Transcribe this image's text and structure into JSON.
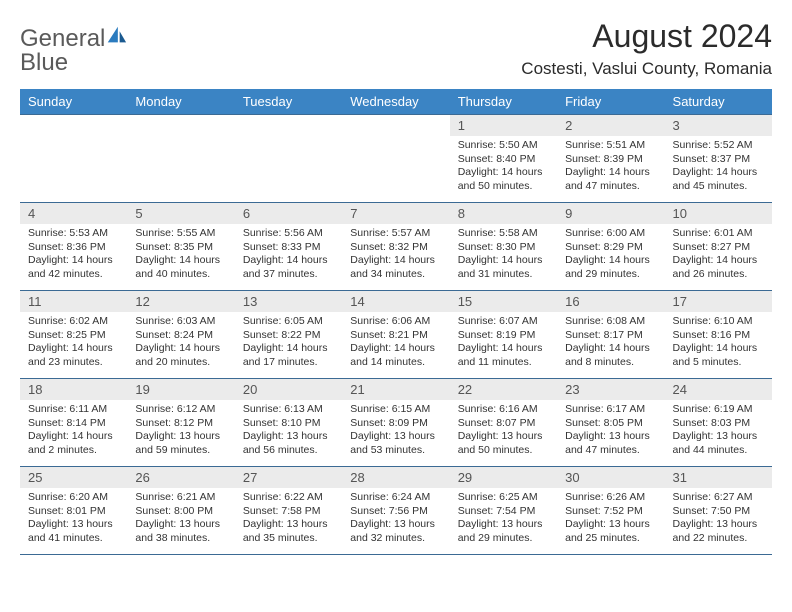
{
  "logo": {
    "text1": "General",
    "text2": "Blue"
  },
  "title": "August 2024",
  "location": "Costesti, Vaslui County, Romania",
  "colors": {
    "header_bg": "#3b84c4",
    "header_text": "#ffffff",
    "daynum_bg": "#ebebeb",
    "border": "#3b6a94",
    "logo_gray": "#5a5a5a",
    "logo_blue": "#2b7bbf"
  },
  "day_headers": [
    "Sunday",
    "Monday",
    "Tuesday",
    "Wednesday",
    "Thursday",
    "Friday",
    "Saturday"
  ],
  "weeks": [
    [
      {
        "n": "",
        "sr": "",
        "ss": "",
        "dl": ""
      },
      {
        "n": "",
        "sr": "",
        "ss": "",
        "dl": ""
      },
      {
        "n": "",
        "sr": "",
        "ss": "",
        "dl": ""
      },
      {
        "n": "",
        "sr": "",
        "ss": "",
        "dl": ""
      },
      {
        "n": "1",
        "sr": "Sunrise: 5:50 AM",
        "ss": "Sunset: 8:40 PM",
        "dl": "Daylight: 14 hours and 50 minutes."
      },
      {
        "n": "2",
        "sr": "Sunrise: 5:51 AM",
        "ss": "Sunset: 8:39 PM",
        "dl": "Daylight: 14 hours and 47 minutes."
      },
      {
        "n": "3",
        "sr": "Sunrise: 5:52 AM",
        "ss": "Sunset: 8:37 PM",
        "dl": "Daylight: 14 hours and 45 minutes."
      }
    ],
    [
      {
        "n": "4",
        "sr": "Sunrise: 5:53 AM",
        "ss": "Sunset: 8:36 PM",
        "dl": "Daylight: 14 hours and 42 minutes."
      },
      {
        "n": "5",
        "sr": "Sunrise: 5:55 AM",
        "ss": "Sunset: 8:35 PM",
        "dl": "Daylight: 14 hours and 40 minutes."
      },
      {
        "n": "6",
        "sr": "Sunrise: 5:56 AM",
        "ss": "Sunset: 8:33 PM",
        "dl": "Daylight: 14 hours and 37 minutes."
      },
      {
        "n": "7",
        "sr": "Sunrise: 5:57 AM",
        "ss": "Sunset: 8:32 PM",
        "dl": "Daylight: 14 hours and 34 minutes."
      },
      {
        "n": "8",
        "sr": "Sunrise: 5:58 AM",
        "ss": "Sunset: 8:30 PM",
        "dl": "Daylight: 14 hours and 31 minutes."
      },
      {
        "n": "9",
        "sr": "Sunrise: 6:00 AM",
        "ss": "Sunset: 8:29 PM",
        "dl": "Daylight: 14 hours and 29 minutes."
      },
      {
        "n": "10",
        "sr": "Sunrise: 6:01 AM",
        "ss": "Sunset: 8:27 PM",
        "dl": "Daylight: 14 hours and 26 minutes."
      }
    ],
    [
      {
        "n": "11",
        "sr": "Sunrise: 6:02 AM",
        "ss": "Sunset: 8:25 PM",
        "dl": "Daylight: 14 hours and 23 minutes."
      },
      {
        "n": "12",
        "sr": "Sunrise: 6:03 AM",
        "ss": "Sunset: 8:24 PM",
        "dl": "Daylight: 14 hours and 20 minutes."
      },
      {
        "n": "13",
        "sr": "Sunrise: 6:05 AM",
        "ss": "Sunset: 8:22 PM",
        "dl": "Daylight: 14 hours and 17 minutes."
      },
      {
        "n": "14",
        "sr": "Sunrise: 6:06 AM",
        "ss": "Sunset: 8:21 PM",
        "dl": "Daylight: 14 hours and 14 minutes."
      },
      {
        "n": "15",
        "sr": "Sunrise: 6:07 AM",
        "ss": "Sunset: 8:19 PM",
        "dl": "Daylight: 14 hours and 11 minutes."
      },
      {
        "n": "16",
        "sr": "Sunrise: 6:08 AM",
        "ss": "Sunset: 8:17 PM",
        "dl": "Daylight: 14 hours and 8 minutes."
      },
      {
        "n": "17",
        "sr": "Sunrise: 6:10 AM",
        "ss": "Sunset: 8:16 PM",
        "dl": "Daylight: 14 hours and 5 minutes."
      }
    ],
    [
      {
        "n": "18",
        "sr": "Sunrise: 6:11 AM",
        "ss": "Sunset: 8:14 PM",
        "dl": "Daylight: 14 hours and 2 minutes."
      },
      {
        "n": "19",
        "sr": "Sunrise: 6:12 AM",
        "ss": "Sunset: 8:12 PM",
        "dl": "Daylight: 13 hours and 59 minutes."
      },
      {
        "n": "20",
        "sr": "Sunrise: 6:13 AM",
        "ss": "Sunset: 8:10 PM",
        "dl": "Daylight: 13 hours and 56 minutes."
      },
      {
        "n": "21",
        "sr": "Sunrise: 6:15 AM",
        "ss": "Sunset: 8:09 PM",
        "dl": "Daylight: 13 hours and 53 minutes."
      },
      {
        "n": "22",
        "sr": "Sunrise: 6:16 AM",
        "ss": "Sunset: 8:07 PM",
        "dl": "Daylight: 13 hours and 50 minutes."
      },
      {
        "n": "23",
        "sr": "Sunrise: 6:17 AM",
        "ss": "Sunset: 8:05 PM",
        "dl": "Daylight: 13 hours and 47 minutes."
      },
      {
        "n": "24",
        "sr": "Sunrise: 6:19 AM",
        "ss": "Sunset: 8:03 PM",
        "dl": "Daylight: 13 hours and 44 minutes."
      }
    ],
    [
      {
        "n": "25",
        "sr": "Sunrise: 6:20 AM",
        "ss": "Sunset: 8:01 PM",
        "dl": "Daylight: 13 hours and 41 minutes."
      },
      {
        "n": "26",
        "sr": "Sunrise: 6:21 AM",
        "ss": "Sunset: 8:00 PM",
        "dl": "Daylight: 13 hours and 38 minutes."
      },
      {
        "n": "27",
        "sr": "Sunrise: 6:22 AM",
        "ss": "Sunset: 7:58 PM",
        "dl": "Daylight: 13 hours and 35 minutes."
      },
      {
        "n": "28",
        "sr": "Sunrise: 6:24 AM",
        "ss": "Sunset: 7:56 PM",
        "dl": "Daylight: 13 hours and 32 minutes."
      },
      {
        "n": "29",
        "sr": "Sunrise: 6:25 AM",
        "ss": "Sunset: 7:54 PM",
        "dl": "Daylight: 13 hours and 29 minutes."
      },
      {
        "n": "30",
        "sr": "Sunrise: 6:26 AM",
        "ss": "Sunset: 7:52 PM",
        "dl": "Daylight: 13 hours and 25 minutes."
      },
      {
        "n": "31",
        "sr": "Sunrise: 6:27 AM",
        "ss": "Sunset: 7:50 PM",
        "dl": "Daylight: 13 hours and 22 minutes."
      }
    ]
  ]
}
